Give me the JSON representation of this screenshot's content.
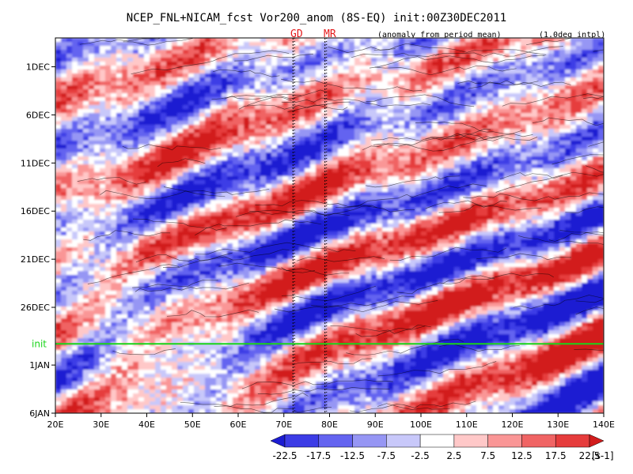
{
  "header": {
    "title": "NCEP_FNL+NICAM_fcst Vor200_anom (8S-EQ) init:00Z30DEC2011",
    "marker_gd": "GD",
    "marker_mr": "MR",
    "note_left": "(anomaly from period mean)",
    "note_right": "(1.0deg intpl)"
  },
  "chart_data": {
    "type": "heatmap",
    "title": "NCEP_FNL+NICAM_fcst Vor200_anom (8S-EQ) init:00Z30DEC2011",
    "xlabel": "",
    "ylabel": "",
    "x_ticks": [
      "20E",
      "30E",
      "40E",
      "50E",
      "60E",
      "70E",
      "80E",
      "90E",
      "100E",
      "110E",
      "120E",
      "130E",
      "140E"
    ],
    "x_range": [
      20,
      140
    ],
    "y_ticks": [
      "1DEC",
      "6DEC",
      "11DEC",
      "16DEC",
      "21DEC",
      "26DEC",
      "1JAN",
      "6JAN"
    ],
    "y_tick_days": [
      1,
      6,
      11,
      16,
      21,
      26,
      32,
      37
    ],
    "y_range_days": [
      -2,
      37
    ],
    "init_label": "init",
    "init_day": 29.8,
    "vertical_markers": [
      {
        "label": "GD",
        "lon": 72
      },
      {
        "label": "MR",
        "lon": 79
      }
    ],
    "colorbar": {
      "labels": [
        "-22.5",
        "-17.5",
        "-12.5",
        "-7.5",
        "-2.5",
        "2.5",
        "7.5",
        "12.5",
        "17.5",
        "22.5"
      ],
      "unit": "[s-1]",
      "colors": [
        "#1c1cd2",
        "#3c3ce6",
        "#6464f0",
        "#9696f4",
        "#c8c8fa",
        "#ffffff",
        "#ffc8c8",
        "#fa9696",
        "#f06464",
        "#e63c3c",
        "#d21c1c"
      ]
    }
  }
}
